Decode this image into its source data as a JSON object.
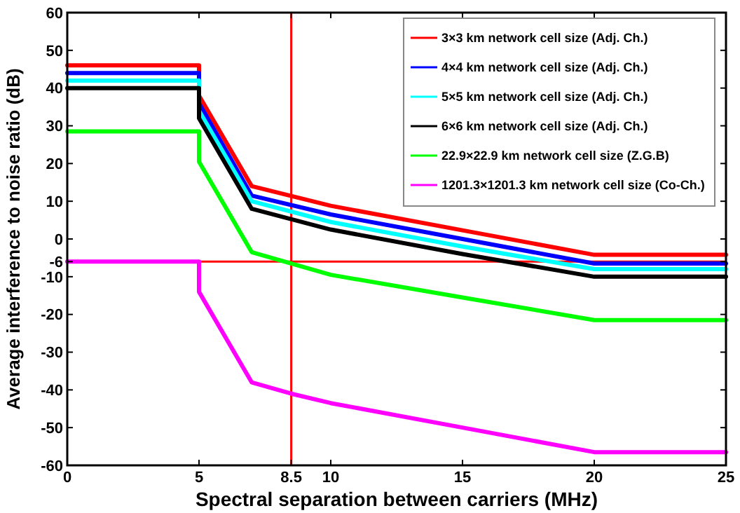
{
  "chart_data": {
    "type": "line",
    "xlabel": "Spectral separation between carriers (MHz)",
    "ylabel": "Average interference to noise ratio (dB)",
    "xlim": [
      0,
      25
    ],
    "ylim": [
      -60,
      60
    ],
    "xticks": [
      0,
      5,
      8.5,
      10,
      15,
      20,
      25
    ],
    "yticks": [
      -60,
      -50,
      -40,
      -30,
      -20,
      -10,
      -6,
      0,
      10,
      20,
      30,
      40,
      50,
      60
    ],
    "grid": false,
    "legend": "top right",
    "line_style": "solid",
    "marker": "none",
    "ref_lines": [
      {
        "axis": "x",
        "value": 8.5,
        "color": "#ff0000"
      },
      {
        "axis": "y",
        "value": -6,
        "color": "#ff0000"
      }
    ],
    "series": [
      {
        "name": "3×3 km network cell size (Adj. Ch.)",
        "color": "#ff0000",
        "x": [
          0,
          5,
          5,
          7,
          10,
          15,
          20,
          25
        ],
        "values": [
          46,
          46,
          38,
          14,
          8.8,
          2.3,
          -4.2,
          -4.2
        ]
      },
      {
        "name": "4×4 km network cell size (Adj. Ch.)",
        "color": "#0000ff",
        "x": [
          0,
          5,
          5,
          7,
          10,
          15,
          20,
          25
        ],
        "values": [
          44,
          44,
          36,
          11.5,
          6.5,
          0,
          -6.5,
          -6.5
        ]
      },
      {
        "name": "5×5 km network cell size (Adj. Ch.)",
        "color": "#00ffff",
        "x": [
          0,
          5,
          5,
          7,
          10,
          15,
          20,
          25
        ],
        "values": [
          42,
          42,
          34,
          10,
          4.5,
          -2,
          -8,
          -8
        ]
      },
      {
        "name": "6×6 km network cell size (Adj. Ch.)",
        "color": "#000000",
        "x": [
          0,
          5,
          5,
          7,
          10,
          15,
          20,
          25
        ],
        "values": [
          40,
          40,
          32,
          8,
          2.5,
          -4,
          -10,
          -10
        ]
      },
      {
        "name": "22.9×22.9 km network cell size (Z.G.B)",
        "color": "#00ff00",
        "x": [
          0,
          5,
          5,
          7,
          10,
          15,
          20,
          25
        ],
        "values": [
          28.5,
          28.5,
          20.5,
          -3.5,
          -9.5,
          -15.5,
          -21.5,
          -21.5
        ]
      },
      {
        "name": "1201.3×1201.3 km network cell size (Co-Ch.)",
        "color": "#ff00ff",
        "x": [
          0,
          5,
          5,
          7,
          8.5,
          10,
          15,
          20,
          25
        ],
        "values": [
          -6,
          -6,
          -14,
          -38,
          -41,
          -43.5,
          -50,
          -56.5,
          -56.5
        ]
      }
    ]
  }
}
